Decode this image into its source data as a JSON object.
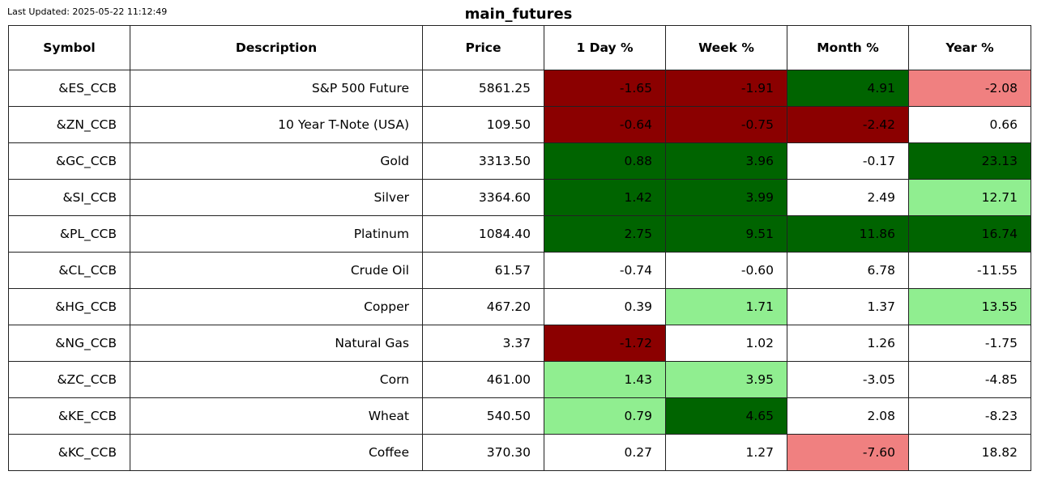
{
  "header": {
    "last_updated": "Last Updated: 2025-05-22 11:12:49",
    "title": "main_futures"
  },
  "colors": {
    "dark_red": "#8b0000",
    "light_red": "#f08080",
    "dark_green": "#006400",
    "light_green": "#90ee90",
    "neutral": "#ffffff"
  },
  "chart_data": {
    "type": "table",
    "title": "main_futures",
    "columns": [
      "Symbol",
      "Description",
      "Price",
      "1 Day %",
      "Week %",
      "Month %",
      "Year %"
    ],
    "rows": [
      {
        "symbol": "&ES_CCB",
        "description": "S&P 500 Future",
        "price": "5861.25",
        "cells": [
          {
            "v": "-1.65",
            "c": "dark_red"
          },
          {
            "v": "-1.91",
            "c": "dark_red"
          },
          {
            "v": "4.91",
            "c": "dark_green"
          },
          {
            "v": "-2.08",
            "c": "light_red"
          }
        ]
      },
      {
        "symbol": "&ZN_CCB",
        "description": "10 Year T-Note (USA)",
        "price": "109.50",
        "cells": [
          {
            "v": "-0.64",
            "c": "dark_red"
          },
          {
            "v": "-0.75",
            "c": "dark_red"
          },
          {
            "v": "-2.42",
            "c": "dark_red"
          },
          {
            "v": "0.66",
            "c": "neutral"
          }
        ]
      },
      {
        "symbol": "&GC_CCB",
        "description": "Gold",
        "price": "3313.50",
        "cells": [
          {
            "v": "0.88",
            "c": "dark_green"
          },
          {
            "v": "3.96",
            "c": "dark_green"
          },
          {
            "v": "-0.17",
            "c": "neutral"
          },
          {
            "v": "23.13",
            "c": "dark_green"
          }
        ]
      },
      {
        "symbol": "&SI_CCB",
        "description": "Silver",
        "price": "3364.60",
        "cells": [
          {
            "v": "1.42",
            "c": "dark_green"
          },
          {
            "v": "3.99",
            "c": "dark_green"
          },
          {
            "v": "2.49",
            "c": "neutral"
          },
          {
            "v": "12.71",
            "c": "light_green"
          }
        ]
      },
      {
        "symbol": "&PL_CCB",
        "description": "Platinum",
        "price": "1084.40",
        "cells": [
          {
            "v": "2.75",
            "c": "dark_green"
          },
          {
            "v": "9.51",
            "c": "dark_green"
          },
          {
            "v": "11.86",
            "c": "dark_green"
          },
          {
            "v": "16.74",
            "c": "dark_green"
          }
        ]
      },
      {
        "symbol": "&CL_CCB",
        "description": "Crude Oil",
        "price": "61.57",
        "cells": [
          {
            "v": "-0.74",
            "c": "neutral"
          },
          {
            "v": "-0.60",
            "c": "neutral"
          },
          {
            "v": "6.78",
            "c": "neutral"
          },
          {
            "v": "-11.55",
            "c": "neutral"
          }
        ]
      },
      {
        "symbol": "&HG_CCB",
        "description": "Copper",
        "price": "467.20",
        "cells": [
          {
            "v": "0.39",
            "c": "neutral"
          },
          {
            "v": "1.71",
            "c": "light_green"
          },
          {
            "v": "1.37",
            "c": "neutral"
          },
          {
            "v": "13.55",
            "c": "light_green"
          }
        ]
      },
      {
        "symbol": "&NG_CCB",
        "description": "Natural Gas",
        "price": "3.37",
        "cells": [
          {
            "v": "-1.72",
            "c": "dark_red"
          },
          {
            "v": "1.02",
            "c": "neutral"
          },
          {
            "v": "1.26",
            "c": "neutral"
          },
          {
            "v": "-1.75",
            "c": "neutral"
          }
        ]
      },
      {
        "symbol": "&ZC_CCB",
        "description": "Corn",
        "price": "461.00",
        "cells": [
          {
            "v": "1.43",
            "c": "light_green"
          },
          {
            "v": "3.95",
            "c": "light_green"
          },
          {
            "v": "-3.05",
            "c": "neutral"
          },
          {
            "v": "-4.85",
            "c": "neutral"
          }
        ]
      },
      {
        "symbol": "&KE_CCB",
        "description": "Wheat",
        "price": "540.50",
        "cells": [
          {
            "v": "0.79",
            "c": "light_green"
          },
          {
            "v": "4.65",
            "c": "dark_green"
          },
          {
            "v": "2.08",
            "c": "neutral"
          },
          {
            "v": "-8.23",
            "c": "neutral"
          }
        ]
      },
      {
        "symbol": "&KC_CCB",
        "description": "Coffee",
        "price": "370.30",
        "cells": [
          {
            "v": "0.27",
            "c": "neutral"
          },
          {
            "v": "1.27",
            "c": "neutral"
          },
          {
            "v": "-7.60",
            "c": "light_red"
          },
          {
            "v": "18.82",
            "c": "neutral"
          }
        ]
      }
    ]
  }
}
